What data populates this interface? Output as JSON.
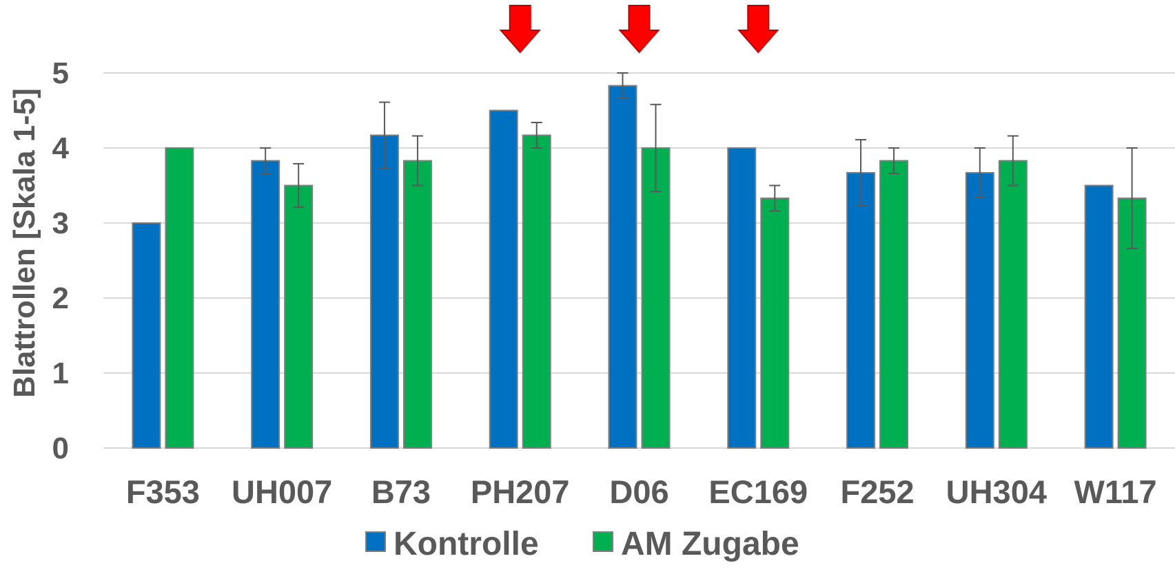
{
  "chart_data": {
    "type": "bar",
    "title": "",
    "xlabel": "",
    "ylabel": "Blattrollen [Skala 1-5]",
    "ylim": [
      0,
      5
    ],
    "yticks": [
      0,
      1,
      2,
      3,
      4,
      5
    ],
    "grid": true,
    "legend_position": "bottom",
    "categories": [
      "F353",
      "UH007",
      "B73",
      "PH207",
      "D06",
      "EC169",
      "F252",
      "UH304",
      "W117"
    ],
    "series": [
      {
        "name": "Kontrolle",
        "color": "#0070C0",
        "values": [
          3.0,
          3.83,
          4.17,
          4.5,
          4.83,
          4.0,
          3.67,
          3.67,
          3.5
        ],
        "error": [
          0,
          0.17,
          0.44,
          0,
          0.17,
          0,
          0.44,
          0.33,
          0
        ]
      },
      {
        "name": "AM Zugabe",
        "color": "#00B050",
        "values": [
          4.0,
          3.5,
          3.83,
          4.17,
          4.0,
          3.33,
          3.83,
          3.83,
          3.33
        ],
        "error": [
          0,
          0.29,
          0.33,
          0.17,
          0.58,
          0.17,
          0.17,
          0.33,
          0.67
        ]
      }
    ],
    "annotations": {
      "arrow_categories": [
        "PH207",
        "D06",
        "EC169"
      ],
      "arrow_color": "#FF0000",
      "arrow_icon": "down-arrow-icon"
    }
  }
}
